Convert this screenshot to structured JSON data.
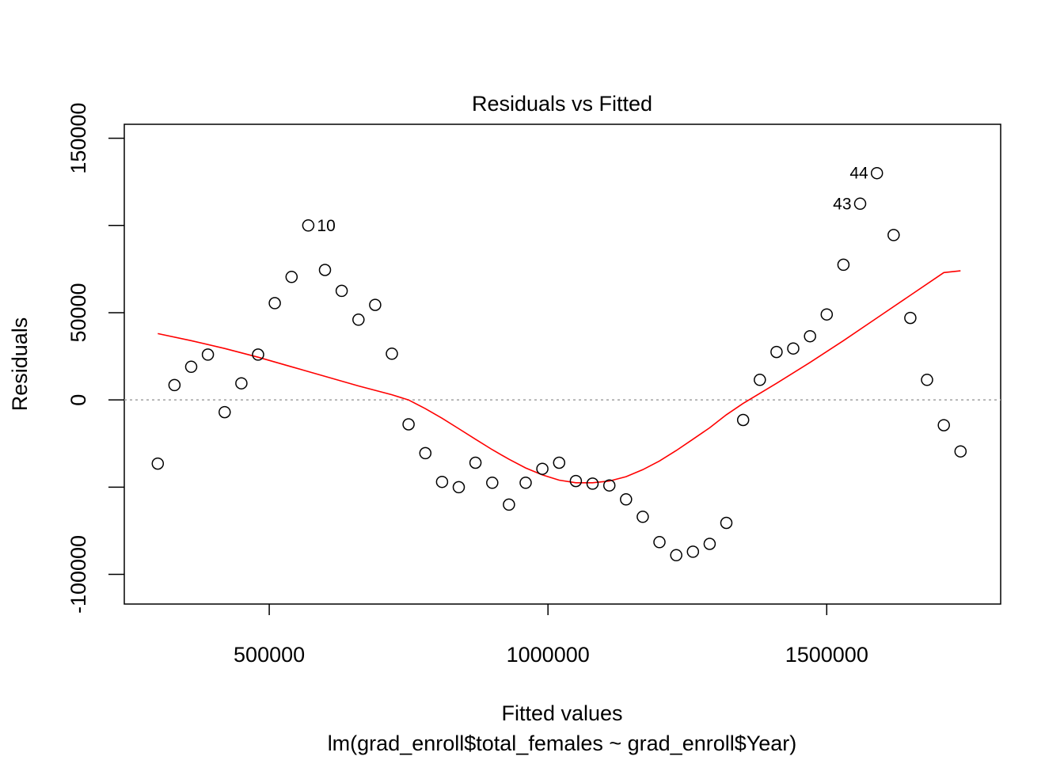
{
  "chart_data": {
    "type": "scatter",
    "title": "Residuals vs Fitted",
    "xlabel": "Fitted values",
    "subtitle": "lm(grad_enroll$total_females ~ grad_enroll$Year)",
    "ylabel": "Residuals",
    "xlim": [
      240000,
      1812000
    ],
    "ylim": [
      -117000,
      158000
    ],
    "x_ticks": [
      500000,
      1000000,
      1500000
    ],
    "x_tick_labels": [
      "500000",
      "1000000",
      "1500000"
    ],
    "y_ticks": [
      -100000,
      -50000,
      0,
      50000,
      100000,
      150000
    ],
    "y_tick_labels": [
      "-100000",
      "",
      "0",
      "50000",
      "",
      "150000"
    ],
    "reference_line": {
      "y": 0,
      "style": "dotted",
      "color": "#a0a0a0"
    },
    "points": [
      {
        "x": 300000,
        "y": -36500
      },
      {
        "x": 330000,
        "y": 8500
      },
      {
        "x": 360000,
        "y": 19000
      },
      {
        "x": 390000,
        "y": 26000
      },
      {
        "x": 420000,
        "y": -7000
      },
      {
        "x": 450000,
        "y": 9500
      },
      {
        "x": 480000,
        "y": 26000
      },
      {
        "x": 510000,
        "y": 55500
      },
      {
        "x": 540000,
        "y": 70500
      },
      {
        "x": 570000,
        "y": 100000,
        "label": "10"
      },
      {
        "x": 600000,
        "y": 74500
      },
      {
        "x": 630000,
        "y": 62500
      },
      {
        "x": 660000,
        "y": 46000
      },
      {
        "x": 690000,
        "y": 54500
      },
      {
        "x": 720000,
        "y": 26500
      },
      {
        "x": 750000,
        "y": -14000
      },
      {
        "x": 780000,
        "y": -30500
      },
      {
        "x": 810000,
        "y": -47000
      },
      {
        "x": 840000,
        "y": -50000
      },
      {
        "x": 870000,
        "y": -36000
      },
      {
        "x": 900000,
        "y": -47500
      },
      {
        "x": 930000,
        "y": -60000
      },
      {
        "x": 960000,
        "y": -47500
      },
      {
        "x": 990000,
        "y": -39500
      },
      {
        "x": 1020000,
        "y": -36000
      },
      {
        "x": 1050000,
        "y": -46500
      },
      {
        "x": 1080000,
        "y": -48000
      },
      {
        "x": 1110000,
        "y": -49000
      },
      {
        "x": 1140000,
        "y": -57000
      },
      {
        "x": 1170000,
        "y": -67000
      },
      {
        "x": 1200000,
        "y": -81500
      },
      {
        "x": 1230000,
        "y": -89000
      },
      {
        "x": 1260000,
        "y": -87000
      },
      {
        "x": 1290000,
        "y": -82500
      },
      {
        "x": 1320000,
        "y": -70500
      },
      {
        "x": 1350000,
        "y": -11500
      },
      {
        "x": 1380000,
        "y": 11500
      },
      {
        "x": 1410000,
        "y": 27500
      },
      {
        "x": 1440000,
        "y": 29500
      },
      {
        "x": 1470000,
        "y": 36500
      },
      {
        "x": 1500000,
        "y": 49000
      },
      {
        "x": 1530000,
        "y": 77500
      },
      {
        "x": 1560000,
        "y": 112500,
        "label": "43"
      },
      {
        "x": 1590000,
        "y": 130000,
        "label": "44"
      },
      {
        "x": 1620000,
        "y": 94500
      },
      {
        "x": 1650000,
        "y": 47000
      },
      {
        "x": 1680000,
        "y": 11500
      },
      {
        "x": 1710000,
        "y": -14500
      },
      {
        "x": 1740000,
        "y": -29500
      }
    ],
    "smooth_line": {
      "color": "#ff0000",
      "x": [
        300000,
        360000,
        420000,
        480000,
        540000,
        600000,
        660000,
        720000,
        750000,
        780000,
        810000,
        840000,
        870000,
        900000,
        930000,
        960000,
        990000,
        1020000,
        1050000,
        1080000,
        1110000,
        1140000,
        1170000,
        1200000,
        1230000,
        1260000,
        1290000,
        1320000,
        1350000,
        1410000,
        1470000,
        1530000,
        1590000,
        1650000,
        1710000,
        1740000
      ],
      "y": [
        38000,
        34000,
        29500,
        24500,
        19000,
        13500,
        8000,
        3000,
        0,
        -5000,
        -10500,
        -16500,
        -22500,
        -28500,
        -34000,
        -39000,
        -43000,
        -46000,
        -47500,
        -47500,
        -46500,
        -44000,
        -40000,
        -35000,
        -29000,
        -22500,
        -16000,
        -8500,
        -2000,
        9500,
        21500,
        34000,
        47000,
        60000,
        73000,
        74000
      ]
    }
  }
}
